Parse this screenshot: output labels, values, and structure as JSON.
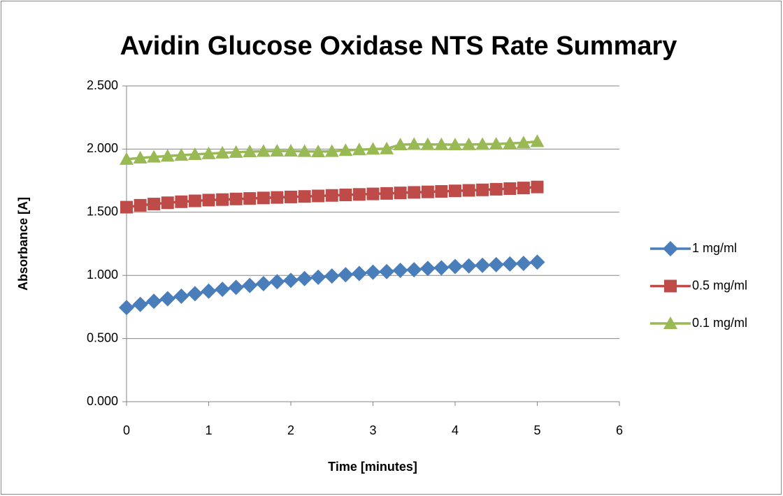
{
  "chart_data": {
    "type": "line",
    "title": "Avidin Glucose Oxidase NTS Rate Summary",
    "x_label": "Time [minutes]",
    "y_label": "Absorbance [A]",
    "x": [
      0,
      0.167,
      0.333,
      0.5,
      0.667,
      0.833,
      1,
      1.167,
      1.333,
      1.5,
      1.667,
      1.833,
      2,
      2.167,
      2.333,
      2.5,
      2.667,
      2.833,
      3,
      3.167,
      3.333,
      3.5,
      3.667,
      3.833,
      4,
      4.167,
      4.333,
      4.5,
      4.667,
      4.833,
      5
    ],
    "series": [
      {
        "name": "1 mg/ml",
        "color": "#4a7ebb",
        "marker": "diamond",
        "values": [
          0.745,
          0.77,
          0.795,
          0.815,
          0.835,
          0.855,
          0.875,
          0.89,
          0.905,
          0.92,
          0.935,
          0.95,
          0.96,
          0.975,
          0.985,
          0.995,
          1.005,
          1.015,
          1.025,
          1.03,
          1.04,
          1.045,
          1.055,
          1.06,
          1.07,
          1.075,
          1.08,
          1.085,
          1.09,
          1.095,
          1.105
        ]
      },
      {
        "name": "0.5 mg/ml",
        "color": "#be4b48",
        "marker": "square",
        "values": [
          1.54,
          1.555,
          1.565,
          1.575,
          1.583,
          1.59,
          1.596,
          1.6,
          1.605,
          1.609,
          1.613,
          1.617,
          1.621,
          1.625,
          1.629,
          1.633,
          1.637,
          1.641,
          1.645,
          1.649,
          1.653,
          1.657,
          1.661,
          1.665,
          1.669,
          1.673,
          1.677,
          1.682,
          1.687,
          1.692,
          1.7
        ]
      },
      {
        "name": "0.1 mg/ml",
        "color": "#98b954",
        "marker": "triangle",
        "values": [
          1.92,
          1.93,
          1.938,
          1.945,
          1.952,
          1.958,
          1.964,
          1.97,
          1.975,
          1.98,
          1.983,
          1.985,
          1.985,
          1.982,
          1.98,
          1.982,
          1.99,
          1.995,
          2.0,
          2.003,
          2.035,
          2.038,
          2.037,
          2.036,
          2.035,
          2.036,
          2.038,
          2.04,
          2.045,
          2.05,
          2.06
        ]
      }
    ],
    "xlim": [
      0,
      6
    ],
    "xticks": [
      0,
      1,
      2,
      3,
      4,
      5,
      6
    ],
    "ylim": [
      0,
      2.5
    ],
    "yticks": [
      {
        "value": 0,
        "label": "0.000"
      },
      {
        "value": 0.5,
        "label": "0.500"
      },
      {
        "value": 1,
        "label": "1.000"
      },
      {
        "value": 1.5,
        "label": "1.500"
      },
      {
        "value": 2,
        "label": "2.000"
      },
      {
        "value": 2.5,
        "label": "2.500"
      }
    ],
    "grid": true,
    "legend": "right"
  }
}
